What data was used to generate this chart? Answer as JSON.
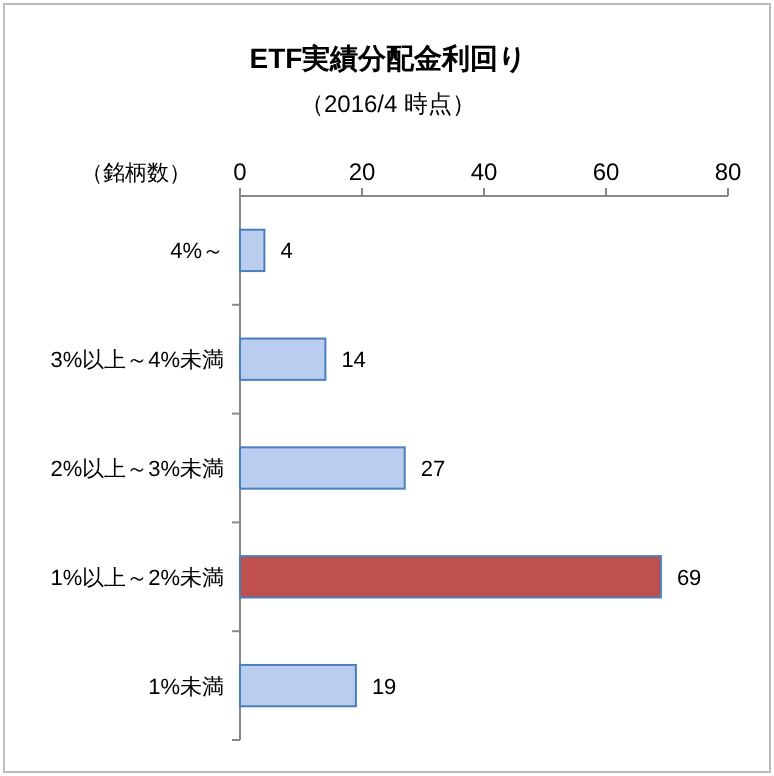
{
  "chart_data": {
    "type": "bar",
    "orientation": "horizontal",
    "title": "ETF実績分配金利回り",
    "subtitle": "（2016/4 時点）",
    "xlabel": "（銘柄数）",
    "categories": [
      "4%～",
      "3%以上～4%未満",
      "2%以上～3%未満",
      "1%以上～2%未満",
      "1%未満"
    ],
    "values": [
      4,
      14,
      27,
      69,
      19
    ],
    "colors": [
      "#b9cdef",
      "#b9cdef",
      "#b9cdef",
      "#c0504d",
      "#b9cdef"
    ],
    "xlim": [
      0,
      80
    ],
    "xticks": [
      0,
      20,
      40,
      60,
      80
    ],
    "data_labels": true
  }
}
